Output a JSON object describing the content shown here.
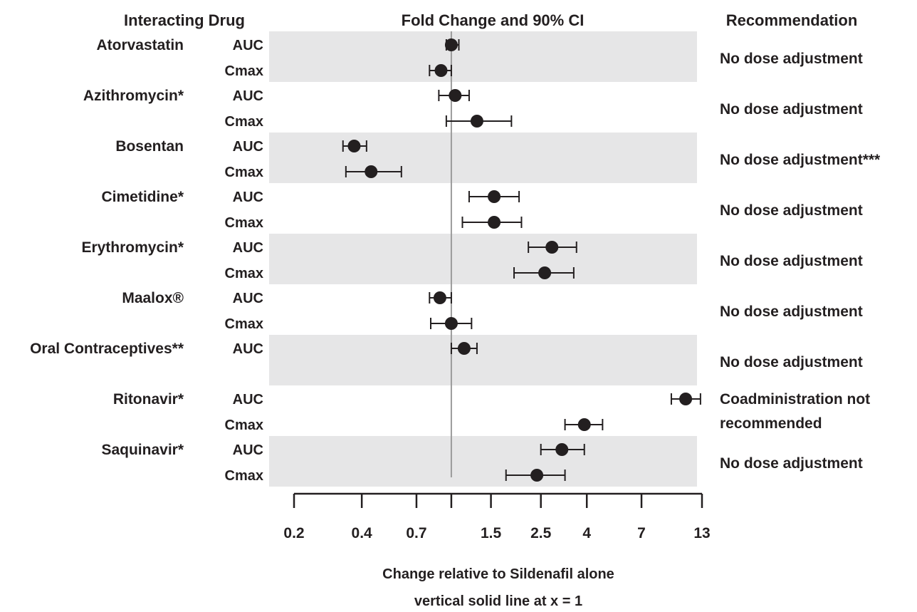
{
  "headers": {
    "drug": "Interacting Drug",
    "effect": "Fold Change and 90% CI",
    "recommendation": "Recommendation"
  },
  "chart_data": {
    "type": "forest",
    "title": "Fold Change and 90% CI",
    "x_scale": "log",
    "xlim": [
      0.2,
      13
    ],
    "xticks": [
      0.2,
      0.4,
      0.7,
      1,
      1.5,
      2.5,
      4,
      7,
      13
    ],
    "xtick_labels": [
      "0.2",
      "0.4",
      "0.7",
      "",
      "1.5",
      "2.5",
      "4",
      "7",
      "13"
    ],
    "xlabel": "Change relative to Sildenafil alone",
    "xlabel2": "vertical solid line at x = 1",
    "reference_line": 1,
    "band_color": "#e6e6e7",
    "marker_color": "#231f20",
    "drugs": [
      {
        "name": "Atorvastatin",
        "recommendation": [
          "No dose adjustment"
        ],
        "rows": [
          {
            "metric": "AUC",
            "estimate": 1.0,
            "ci": [
              0.95,
              1.08
            ]
          },
          {
            "metric": "Cmax",
            "estimate": 0.9,
            "ci": [
              0.8,
              1.0
            ]
          }
        ]
      },
      {
        "name": "Azithromycin*",
        "recommendation": [
          "No dose adjustment"
        ],
        "rows": [
          {
            "metric": "AUC",
            "estimate": 1.04,
            "ci": [
              0.88,
              1.2
            ]
          },
          {
            "metric": "Cmax",
            "estimate": 1.3,
            "ci": [
              0.95,
              1.85
            ]
          }
        ]
      },
      {
        "name": "Bosentan",
        "recommendation": [
          "No dose adjustment***"
        ],
        "rows": [
          {
            "metric": "AUC",
            "estimate": 0.37,
            "ci": [
              0.33,
              0.42
            ]
          },
          {
            "metric": "Cmax",
            "estimate": 0.44,
            "ci": [
              0.34,
              0.6
            ]
          }
        ]
      },
      {
        "name": "Cimetidine*",
        "recommendation": [
          "No dose adjustment"
        ],
        "rows": [
          {
            "metric": "AUC",
            "estimate": 1.55,
            "ci": [
              1.2,
              2.0
            ]
          },
          {
            "metric": "Cmax",
            "estimate": 1.55,
            "ci": [
              1.12,
              2.05
            ]
          }
        ]
      },
      {
        "name": "Erythromycin*",
        "recommendation": [
          "No dose adjustment"
        ],
        "rows": [
          {
            "metric": "AUC",
            "estimate": 2.8,
            "ci": [
              2.2,
              3.6
            ]
          },
          {
            "metric": "Cmax",
            "estimate": 2.6,
            "ci": [
              1.9,
              3.5
            ]
          }
        ]
      },
      {
        "name": "Maalox®",
        "recommendation": [
          "No dose adjustment"
        ],
        "rows": [
          {
            "metric": "AUC",
            "estimate": 0.89,
            "ci": [
              0.8,
              1.0
            ]
          },
          {
            "metric": "Cmax",
            "estimate": 1.0,
            "ci": [
              0.81,
              1.23
            ]
          }
        ]
      },
      {
        "name": "Oral Contraceptives**",
        "recommendation": [
          "No dose adjustment"
        ],
        "rows": [
          {
            "metric": "AUC",
            "estimate": 1.14,
            "ci": [
              1.0,
              1.3
            ]
          }
        ]
      },
      {
        "name": "Ritonavir*",
        "recommendation": [
          "Coadministration not",
          "recommended"
        ],
        "rows": [
          {
            "metric": "AUC",
            "estimate": 11.0,
            "ci": [
              9.5,
              12.8
            ]
          },
          {
            "metric": "Cmax",
            "estimate": 3.9,
            "ci": [
              3.2,
              4.7
            ]
          }
        ]
      },
      {
        "name": "Saquinavir*",
        "recommendation": [
          "No dose adjustment"
        ],
        "rows": [
          {
            "metric": "AUC",
            "estimate": 3.1,
            "ci": [
              2.5,
              3.9
            ]
          },
          {
            "metric": "Cmax",
            "estimate": 2.4,
            "ci": [
              1.75,
              3.2
            ]
          }
        ]
      }
    ]
  }
}
